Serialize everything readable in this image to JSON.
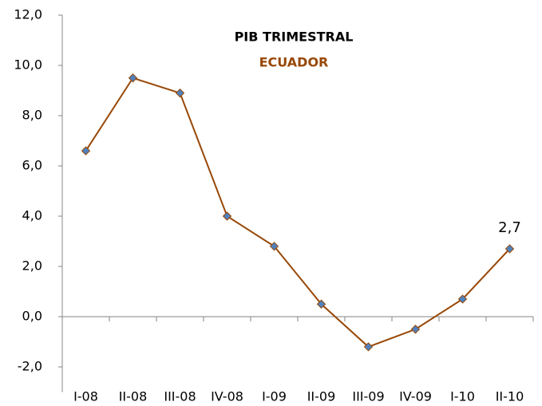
{
  "chart_data": {
    "type": "line",
    "title": "PIB TRIMESTRAL",
    "subtitle": "ECUADOR",
    "categories": [
      "I-08",
      "II-08",
      "III-08",
      "IV-08",
      "I-09",
      "II-09",
      "III-09",
      "IV-09",
      "I-10",
      "II-10"
    ],
    "series": [
      {
        "name": "PIB",
        "color": "#984807",
        "marker_color": "#4f81bd",
        "values": [
          6.6,
          9.5,
          8.9,
          4.0,
          2.8,
          0.5,
          -1.2,
          -0.5,
          0.7,
          2.7
        ],
        "value_labels": [
          null,
          null,
          null,
          null,
          null,
          null,
          null,
          null,
          null,
          "2,7"
        ]
      }
    ],
    "ylim": [
      -3,
      12
    ],
    "yticks": [
      {
        "value": -2,
        "label": "-2,0"
      },
      {
        "value": 0,
        "label": "0,0"
      },
      {
        "value": 2,
        "label": "2,0"
      },
      {
        "value": 4,
        "label": "4,0"
      },
      {
        "value": 6,
        "label": "6,0"
      },
      {
        "value": 8,
        "label": "8,0"
      },
      {
        "value": 10,
        "label": "10,0"
      },
      {
        "value": 12,
        "label": "12,0"
      }
    ],
    "grid": false
  }
}
